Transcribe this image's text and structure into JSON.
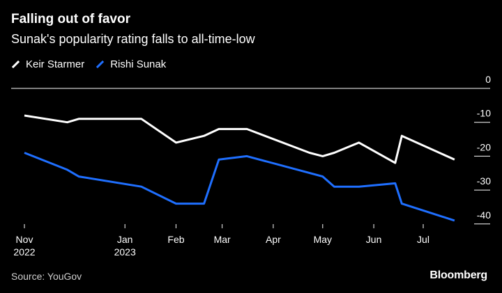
{
  "header": {
    "title": "Falling out of favor",
    "subtitle": "Sunak's popularity rating falls to all-time-low"
  },
  "footer": {
    "source": "Source: YouGov",
    "brand": "Bloomberg"
  },
  "colors": {
    "background": "#000000",
    "starmer": "#ffffff",
    "sunak": "#1f6fff",
    "axis": "#ffffff"
  },
  "chart_data": {
    "type": "line",
    "title": "Falling out of favor",
    "subtitle": "Sunak's popularity rating falls to all-time-low",
    "xlabel": "",
    "ylabel": "",
    "x_range": [
      "2022-11-01",
      "2023-08-01"
    ],
    "ylim": [
      -42,
      0
    ],
    "y_ticks": [
      0,
      -10,
      -20,
      -30,
      -40
    ],
    "y_tick_labels": [
      "0",
      "-10",
      "-20",
      "-30",
      "-40"
    ],
    "x_ticks": [
      {
        "date": "2022-11-01",
        "label": "Nov",
        "sublabel": "2022"
      },
      {
        "date": "2023-01-01",
        "label": "Jan",
        "sublabel": "2023"
      },
      {
        "date": "2023-02-01",
        "label": "Feb",
        "sublabel": ""
      },
      {
        "date": "2023-03-01",
        "label": "Mar",
        "sublabel": ""
      },
      {
        "date": "2023-04-01",
        "label": "Apr",
        "sublabel": ""
      },
      {
        "date": "2023-05-01",
        "label": "May",
        "sublabel": ""
      },
      {
        "date": "2023-06-01",
        "label": "Jun",
        "sublabel": ""
      },
      {
        "date": "2023-07-01",
        "label": "Jul",
        "sublabel": ""
      }
    ],
    "legend_position": "top-left",
    "grid": false,
    "series": [
      {
        "name": "Keir Starmer",
        "color": "#ffffff",
        "points": [
          {
            "x": "2022-11-01",
            "y": -8
          },
          {
            "x": "2022-11-27",
            "y": -10
          },
          {
            "x": "2022-12-04",
            "y": -9
          },
          {
            "x": "2023-01-11",
            "y": -9
          },
          {
            "x": "2023-02-01",
            "y": -16
          },
          {
            "x": "2023-02-18",
            "y": -14
          },
          {
            "x": "2023-02-27",
            "y": -12
          },
          {
            "x": "2023-03-16",
            "y": -12
          },
          {
            "x": "2023-04-23",
            "y": -19
          },
          {
            "x": "2023-05-01",
            "y": -20
          },
          {
            "x": "2023-05-08",
            "y": -19
          },
          {
            "x": "2023-05-23",
            "y": -16
          },
          {
            "x": "2023-06-14",
            "y": -22
          },
          {
            "x": "2023-06-18",
            "y": -14
          },
          {
            "x": "2023-07-20",
            "y": -21
          }
        ]
      },
      {
        "name": "Rishi Sunak",
        "color": "#1f6fff",
        "points": [
          {
            "x": "2022-11-01",
            "y": -19
          },
          {
            "x": "2022-11-27",
            "y": -24
          },
          {
            "x": "2022-12-04",
            "y": -26
          },
          {
            "x": "2023-01-11",
            "y": -29
          },
          {
            "x": "2023-02-01",
            "y": -34
          },
          {
            "x": "2023-02-18",
            "y": -34
          },
          {
            "x": "2023-02-27",
            "y": -21
          },
          {
            "x": "2023-03-16",
            "y": -20
          },
          {
            "x": "2023-05-01",
            "y": -26
          },
          {
            "x": "2023-05-08",
            "y": -29
          },
          {
            "x": "2023-05-23",
            "y": -29
          },
          {
            "x": "2023-06-14",
            "y": -28
          },
          {
            "x": "2023-06-18",
            "y": -34
          },
          {
            "x": "2023-07-20",
            "y": -39
          }
        ]
      }
    ]
  }
}
